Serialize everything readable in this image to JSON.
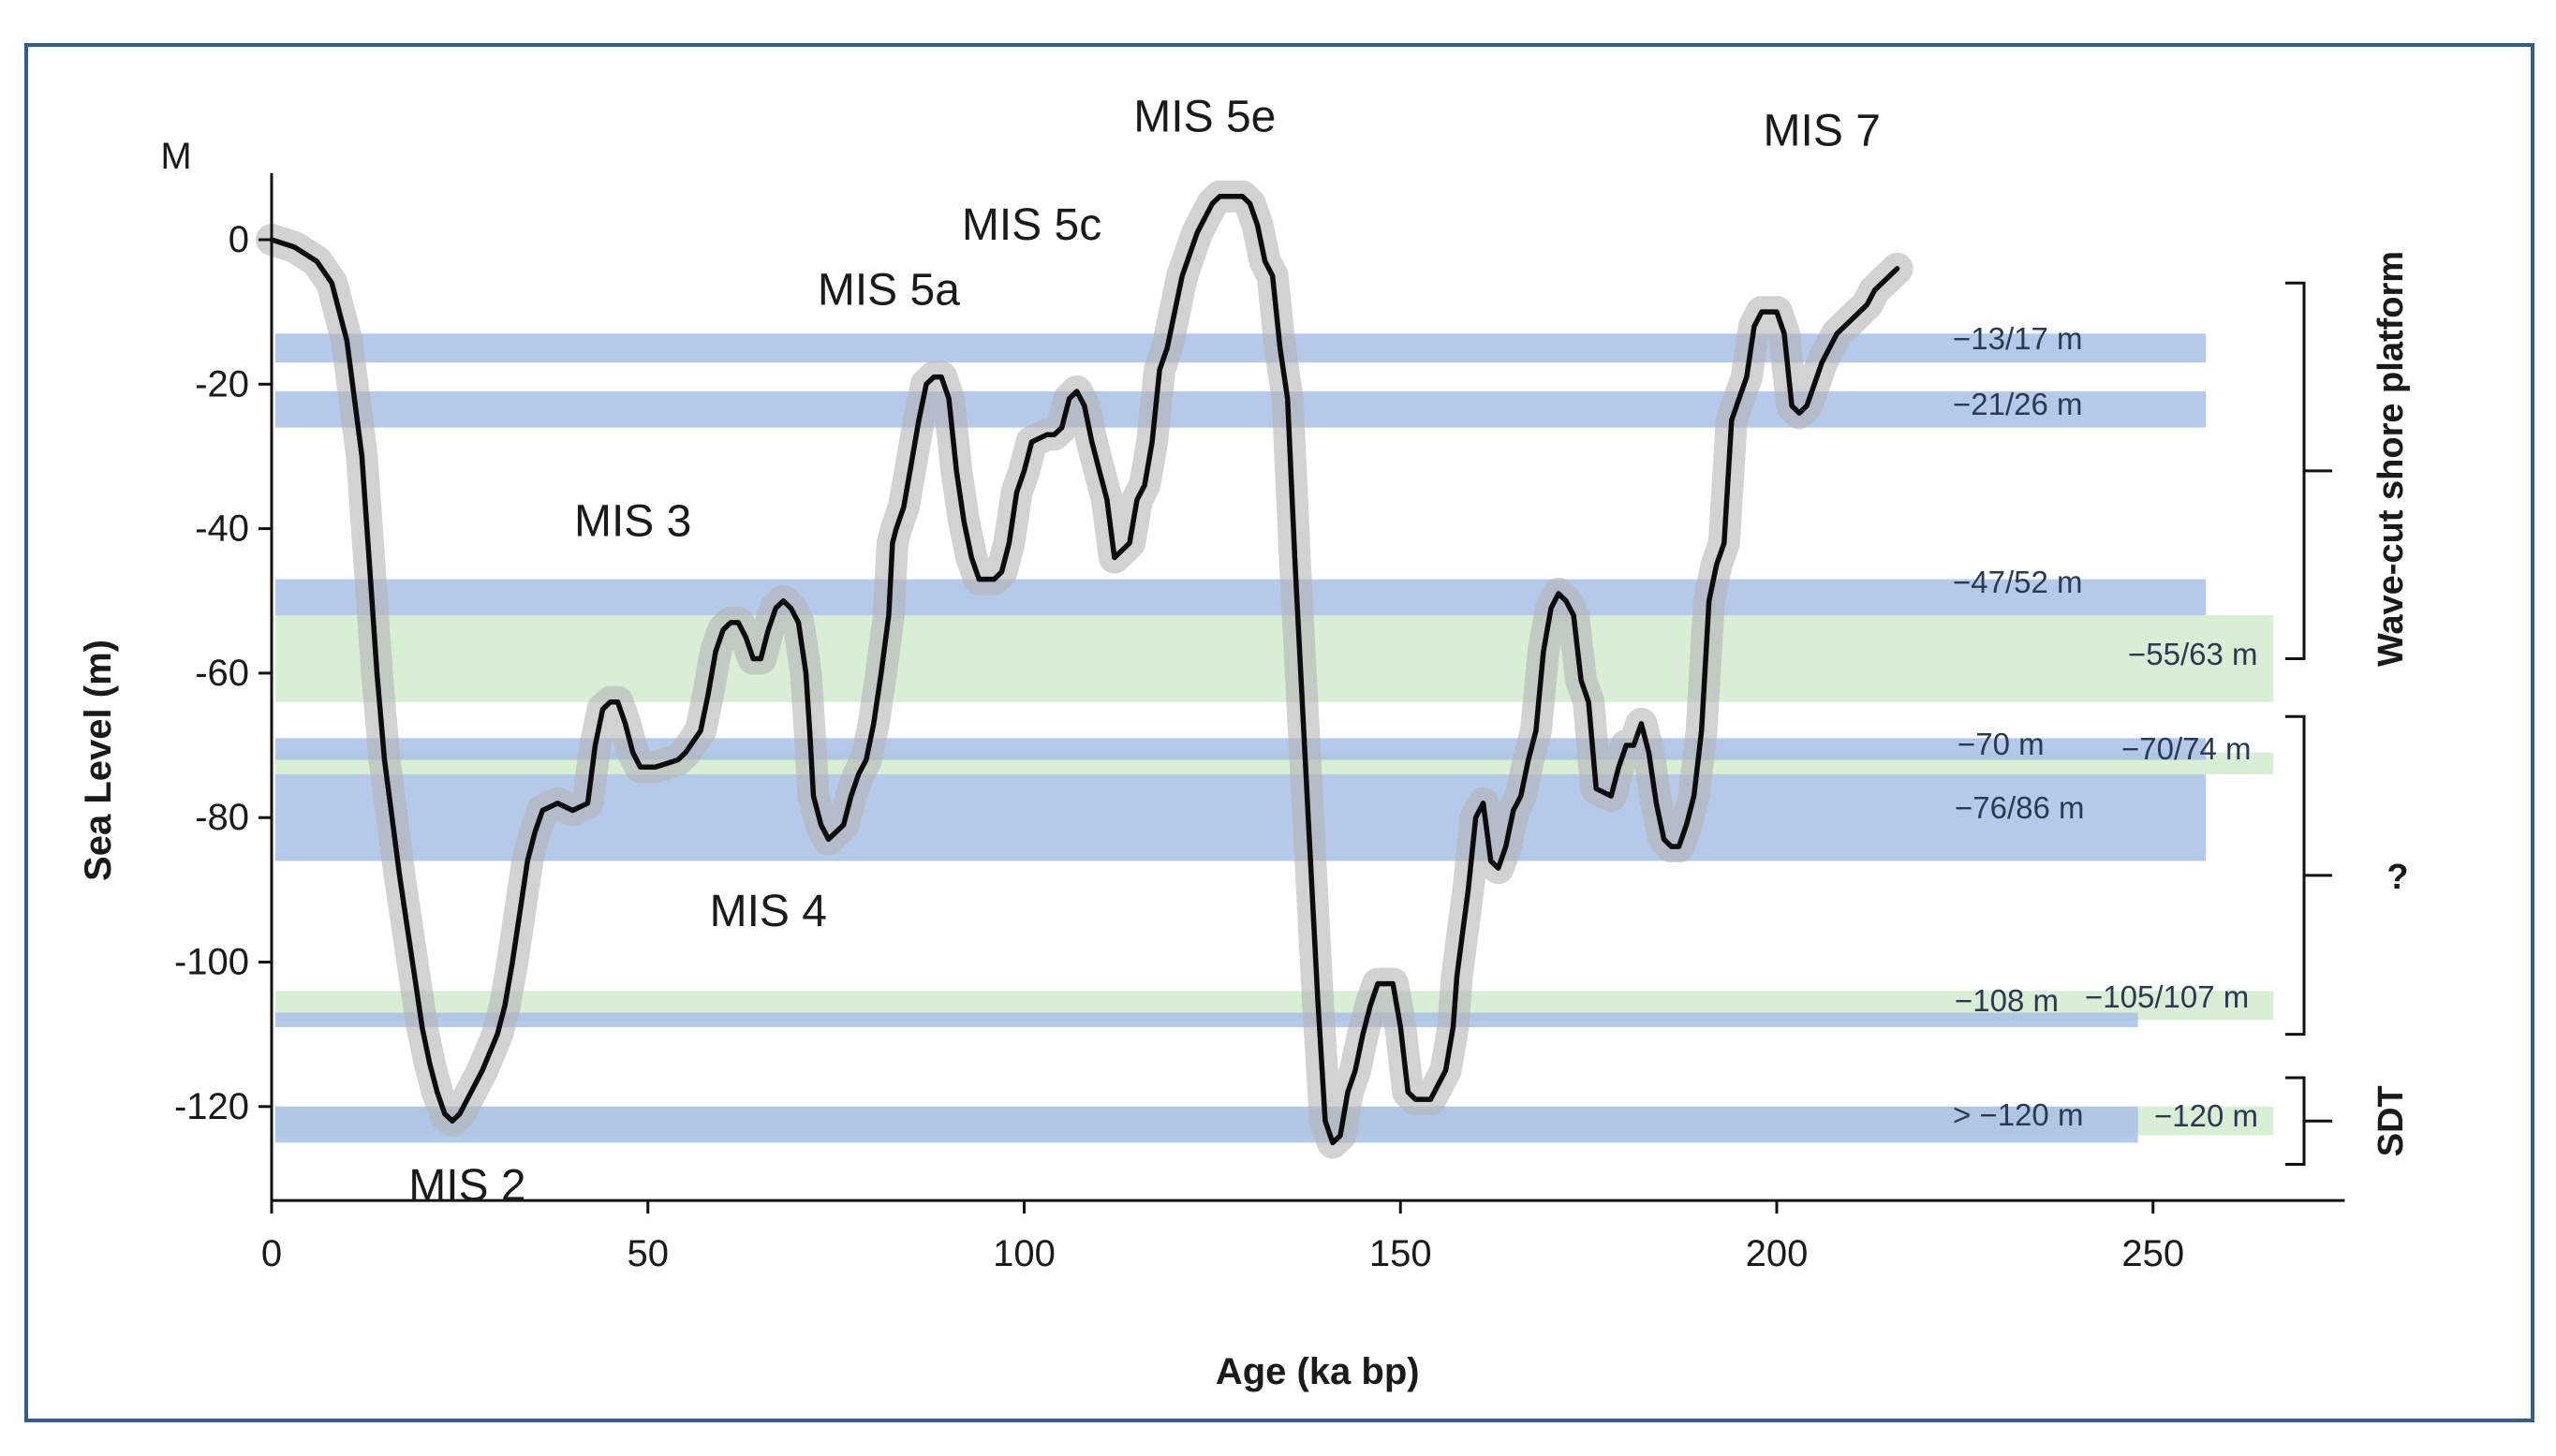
{
  "chart_data": {
    "type": "line",
    "title": "",
    "xlabel": "Age (ka bp)",
    "ylabel": "Sea Level (m)",
    "y_unit_label": "M",
    "xlim": [
      0,
      270
    ],
    "ylim": [
      -133,
      10
    ],
    "x_ticks": [
      0,
      50,
      100,
      150,
      200,
      250
    ],
    "y_ticks": [
      0,
      -20,
      -40,
      -60,
      -80,
      -100,
      -120
    ],
    "grid": false,
    "series": [
      {
        "name": "Sea level curve",
        "points": [
          [
            0,
            0
          ],
          [
            3,
            -1
          ],
          [
            6,
            -3
          ],
          [
            8,
            -6
          ],
          [
            9,
            -10
          ],
          [
            10,
            -14
          ],
          [
            11,
            -22
          ],
          [
            12,
            -30
          ],
          [
            13,
            -45
          ],
          [
            14,
            -60
          ],
          [
            15,
            -72
          ],
          [
            16,
            -80
          ],
          [
            17,
            -88
          ],
          [
            18,
            -95
          ],
          [
            19,
            -102
          ],
          [
            20,
            -109
          ],
          [
            21,
            -114
          ],
          [
            22,
            -118
          ],
          [
            23,
            -121
          ],
          [
            24,
            -122
          ],
          [
            25,
            -121
          ],
          [
            26,
            -119
          ],
          [
            28,
            -115
          ],
          [
            30,
            -110
          ],
          [
            31,
            -106
          ],
          [
            32,
            -100
          ],
          [
            33,
            -93
          ],
          [
            34,
            -86
          ],
          [
            35,
            -82
          ],
          [
            36,
            -79
          ],
          [
            38,
            -78
          ],
          [
            40,
            -79
          ],
          [
            42,
            -78
          ],
          [
            43,
            -70
          ],
          [
            44,
            -65
          ],
          [
            45,
            -64
          ],
          [
            46,
            -64
          ],
          [
            47,
            -67
          ],
          [
            48,
            -71
          ],
          [
            49,
            -73
          ],
          [
            51,
            -73
          ],
          [
            54,
            -72
          ],
          [
            55,
            -71
          ],
          [
            57,
            -68
          ],
          [
            58,
            -63
          ],
          [
            59,
            -57
          ],
          [
            60,
            -54
          ],
          [
            61,
            -53
          ],
          [
            62,
            -53
          ],
          [
            63,
            -55
          ],
          [
            64,
            -58
          ],
          [
            65,
            -58
          ],
          [
            66,
            -54
          ],
          [
            67,
            -51
          ],
          [
            68,
            -50
          ],
          [
            69,
            -51
          ],
          [
            70,
            -53
          ],
          [
            71,
            -60
          ],
          [
            71.5,
            -68
          ],
          [
            72,
            -77
          ],
          [
            73,
            -81
          ],
          [
            74,
            -83
          ],
          [
            75,
            -82
          ],
          [
            76,
            -81
          ],
          [
            77,
            -77
          ],
          [
            78,
            -74
          ],
          [
            79,
            -72
          ],
          [
            80,
            -67
          ],
          [
            81,
            -60
          ],
          [
            82,
            -52
          ],
          [
            82.5,
            -42
          ],
          [
            83,
            -40
          ],
          [
            84,
            -37
          ],
          [
            85,
            -31
          ],
          [
            86,
            -25
          ],
          [
            87,
            -20
          ],
          [
            88,
            -19
          ],
          [
            89,
            -19
          ],
          [
            90,
            -22
          ],
          [
            91,
            -32
          ],
          [
            92,
            -39
          ],
          [
            93,
            -44
          ],
          [
            94,
            -47
          ],
          [
            96,
            -47
          ],
          [
            97,
            -46
          ],
          [
            98,
            -42
          ],
          [
            99,
            -35
          ],
          [
            100,
            -32
          ],
          [
            101,
            -28
          ],
          [
            103,
            -27
          ],
          [
            104,
            -27
          ],
          [
            105,
            -26
          ],
          [
            106,
            -22
          ],
          [
            107,
            -21
          ],
          [
            108,
            -23
          ],
          [
            109,
            -28
          ],
          [
            110,
            -32
          ],
          [
            111,
            -36
          ],
          [
            112,
            -44
          ],
          [
            113,
            -43
          ],
          [
            114,
            -42
          ],
          [
            115,
            -36
          ],
          [
            116,
            -34
          ],
          [
            117,
            -28
          ],
          [
            118,
            -18
          ],
          [
            119,
            -15
          ],
          [
            120,
            -10
          ],
          [
            121,
            -5
          ],
          [
            122,
            -2
          ],
          [
            123,
            1
          ],
          [
            124,
            3
          ],
          [
            125,
            5
          ],
          [
            126,
            6
          ],
          [
            128,
            6
          ],
          [
            129,
            6
          ],
          [
            130,
            5
          ],
          [
            131,
            2
          ],
          [
            132,
            -3
          ],
          [
            133,
            -5
          ],
          [
            134,
            -15
          ],
          [
            135,
            -22
          ],
          [
            136,
            -45
          ],
          [
            137,
            -65
          ],
          [
            138,
            -85
          ],
          [
            139,
            -105
          ],
          [
            140,
            -122
          ],
          [
            141,
            -125
          ],
          [
            142,
            -124
          ],
          [
            143,
            -118
          ],
          [
            144,
            -115
          ],
          [
            145,
            -110
          ],
          [
            146,
            -106
          ],
          [
            147,
            -103
          ],
          [
            148,
            -103
          ],
          [
            149,
            -103
          ],
          [
            150,
            -109
          ],
          [
            151,
            -118
          ],
          [
            152,
            -119
          ],
          [
            154,
            -119
          ],
          [
            155,
            -117
          ],
          [
            156,
            -115
          ],
          [
            157,
            -109
          ],
          [
            157.5,
            -102
          ],
          [
            158,
            -98
          ],
          [
            159,
            -90
          ],
          [
            160,
            -80
          ],
          [
            161,
            -78
          ],
          [
            162,
            -86
          ],
          [
            163,
            -87
          ],
          [
            164,
            -84
          ],
          [
            165,
            -79
          ],
          [
            166,
            -77
          ],
          [
            167,
            -72
          ],
          [
            168,
            -68
          ],
          [
            169,
            -57
          ],
          [
            170,
            -51
          ],
          [
            171,
            -49
          ],
          [
            172,
            -50
          ],
          [
            173,
            -52
          ],
          [
            174,
            -61
          ],
          [
            175,
            -64
          ],
          [
            176,
            -76
          ],
          [
            178,
            -77
          ],
          [
            179,
            -73
          ],
          [
            180,
            -70
          ],
          [
            181,
            -70
          ],
          [
            182,
            -67
          ],
          [
            183,
            -71
          ],
          [
            184,
            -78
          ],
          [
            185,
            -83
          ],
          [
            186,
            -84
          ],
          [
            187,
            -84
          ],
          [
            188,
            -81
          ],
          [
            189,
            -77
          ],
          [
            190,
            -68
          ],
          [
            191,
            -50
          ],
          [
            192,
            -45
          ],
          [
            193,
            -42
          ],
          [
            194,
            -25
          ],
          [
            195,
            -22
          ],
          [
            196,
            -19
          ],
          [
            197,
            -12
          ],
          [
            198,
            -10
          ],
          [
            199,
            -10
          ],
          [
            200,
            -10
          ],
          [
            201,
            -13
          ],
          [
            202,
            -23
          ],
          [
            203,
            -24
          ],
          [
            204,
            -23
          ],
          [
            205,
            -20
          ],
          [
            206,
            -17
          ],
          [
            207,
            -15
          ],
          [
            208,
            -13
          ],
          [
            210,
            -11
          ],
          [
            212,
            -9
          ],
          [
            213,
            -7
          ],
          [
            215,
            -5
          ],
          [
            216,
            -4
          ]
        ]
      }
    ],
    "bands": [
      {
        "label": "−13/17 m",
        "y_from": -13,
        "y_to": -17,
        "x_to": 257,
        "color": "#a8c0e6"
      },
      {
        "label": "−21/26 m",
        "y_from": -21,
        "y_to": -26,
        "x_to": 257,
        "color": "#a8c0e6"
      },
      {
        "label": "−47/52 m",
        "y_from": -47,
        "y_to": -52,
        "x_to": 257,
        "color": "#a8c0e6"
      },
      {
        "label": "−55/63 m",
        "y_from": -52,
        "y_to": -64,
        "x_to": 266,
        "color": "#d4ecd0"
      },
      {
        "label": "−70 m",
        "y_from": -69,
        "y_to": -72,
        "x_to": 257,
        "color": "#a8c0e6"
      },
      {
        "label": "−70/74 m",
        "y_from": -71,
        "y_to": -74,
        "x_to": 266,
        "color": "#d4ecd0"
      },
      {
        "label": "−76/86 m",
        "y_from": -74,
        "y_to": -86,
        "x_to": 257,
        "color": "#a8c0e6"
      },
      {
        "label": "−108 m",
        "y_from": -107,
        "y_to": -109,
        "x_to": 248,
        "color": "#a8c0e6"
      },
      {
        "label": "−105/107 m",
        "y_from": -104,
        "y_to": -108,
        "x_to": 266,
        "color": "#d4ecd0"
      },
      {
        "label": "> −120 m",
        "y_from": -120,
        "y_to": -125,
        "x_to": 248,
        "color": "#a8c0e6"
      },
      {
        "label": "−120 m",
        "y_from": -120,
        "y_to": -124,
        "x_to": 266,
        "color": "#d4ecd0"
      }
    ],
    "annotations": [
      {
        "text": "MIS 2",
        "x": 26,
        "y": -133
      },
      {
        "text": "MIS 3",
        "x": 48,
        "y": -41
      },
      {
        "text": "MIS 4",
        "x": 66,
        "y": -95
      },
      {
        "text": "MIS 5a",
        "x": 82,
        "y": -9
      },
      {
        "text": "MIS 5c",
        "x": 101,
        "y": 0
      },
      {
        "text": "MIS 5e",
        "x": 124,
        "y": 15
      },
      {
        "text": "MIS 7",
        "x": 206,
        "y": 13
      }
    ],
    "brackets": [
      {
        "text": "Wave-cut shore platform",
        "y_from": -6,
        "y_to": -58
      },
      {
        "text": "?",
        "y_from": -66,
        "y_to": -110
      },
      {
        "text": "SDT",
        "y_from": -116,
        "y_to": -128
      }
    ]
  }
}
